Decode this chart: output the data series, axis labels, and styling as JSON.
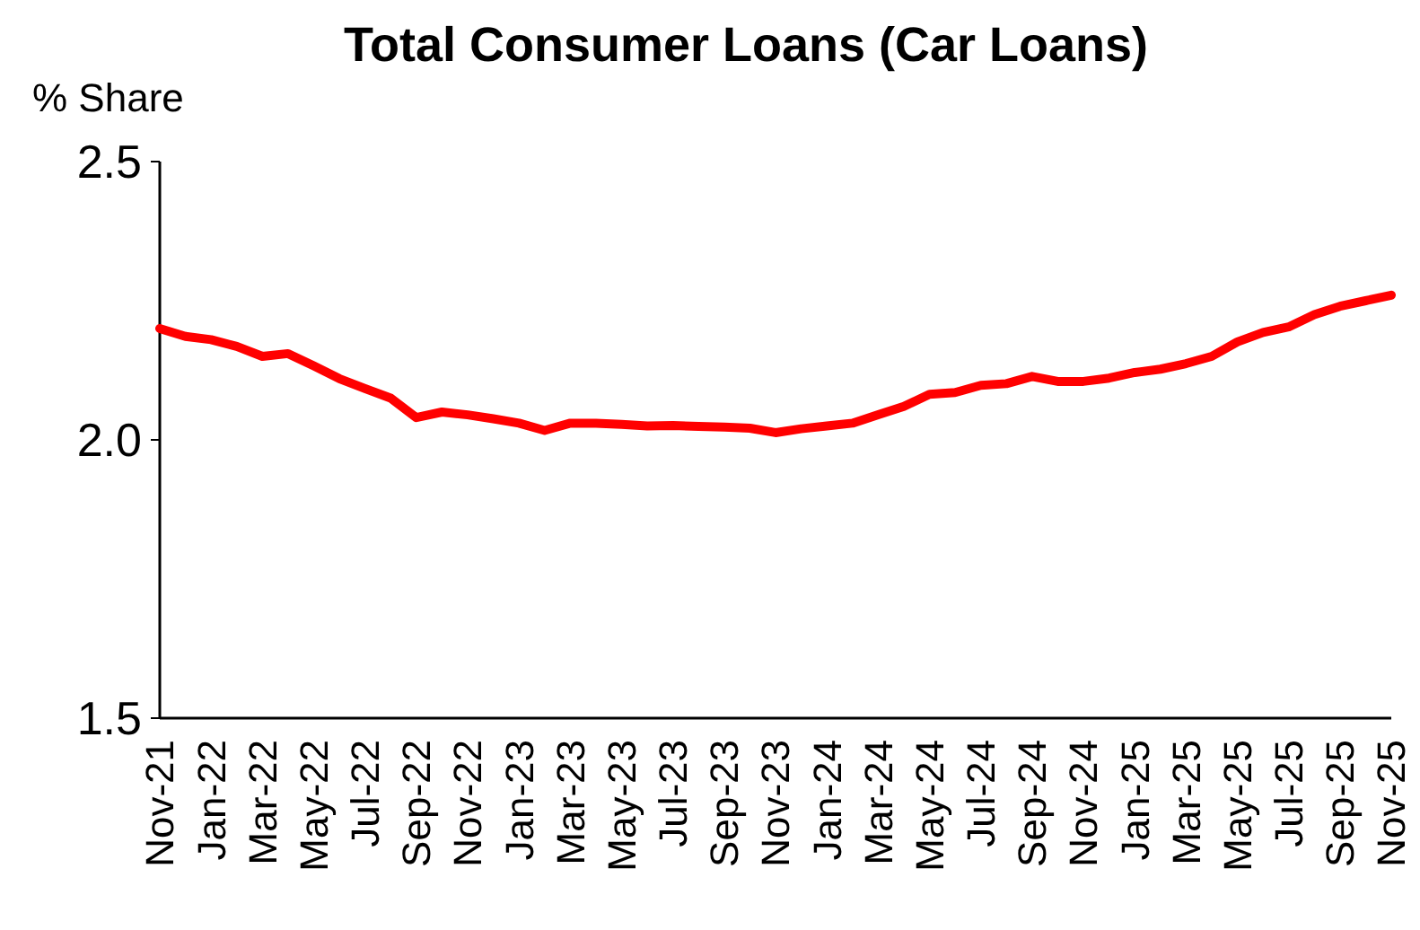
{
  "chart_data": {
    "type": "line",
    "title": "Total Consumer Loans (Car Loans)",
    "ylabel": "% Share",
    "categories": [
      "Nov-21",
      null,
      "Jan-22",
      null,
      "Mar-22",
      null,
      "May-22",
      null,
      "Jul-22",
      null,
      "Sep-22",
      null,
      "Nov-22",
      null,
      "Jan-23",
      null,
      "Mar-23",
      null,
      "May-23",
      null,
      "Jul-23",
      null,
      "Sep-23",
      null,
      "Nov-23",
      null,
      "Jan-24",
      null,
      "Mar-24",
      null,
      "May-24",
      null,
      "Jul-24",
      null,
      "Sep-24",
      null,
      "Nov-24",
      null,
      "Jan-25",
      null,
      "Mar-25",
      null,
      "May-25",
      null,
      "Jul-25",
      null,
      "Sep-25",
      null,
      "Nov-25"
    ],
    "series": [
      {
        "color": "#ff0000",
        "values": [
          2.2,
          2.186,
          2.18,
          2.168,
          2.15,
          2.155,
          2.133,
          2.11,
          2.092,
          2.075,
          2.04,
          2.05,
          2.045,
          2.038,
          2.03,
          2.017,
          2.03,
          2.03,
          2.028,
          2.025,
          2.026,
          2.024,
          2.023,
          2.021,
          2.013,
          2.02,
          2.025,
          2.03,
          2.045,
          2.06,
          2.082,
          2.085,
          2.098,
          2.101,
          2.114,
          2.105,
          2.105,
          2.111,
          2.121,
          2.127,
          2.137,
          2.15,
          2.176,
          2.193,
          2.203,
          2.225,
          2.24,
          2.25,
          2.26
        ]
      }
    ],
    "ylim": [
      1.5,
      2.5
    ],
    "yticks": [
      {
        "value": 1.5,
        "label": "1.5"
      },
      {
        "value": 2,
        "label": "2.0"
      },
      {
        "value": 2.5,
        "label": "2.5"
      }
    ],
    "grid": false,
    "marker": "none",
    "line_style": "solid"
  }
}
